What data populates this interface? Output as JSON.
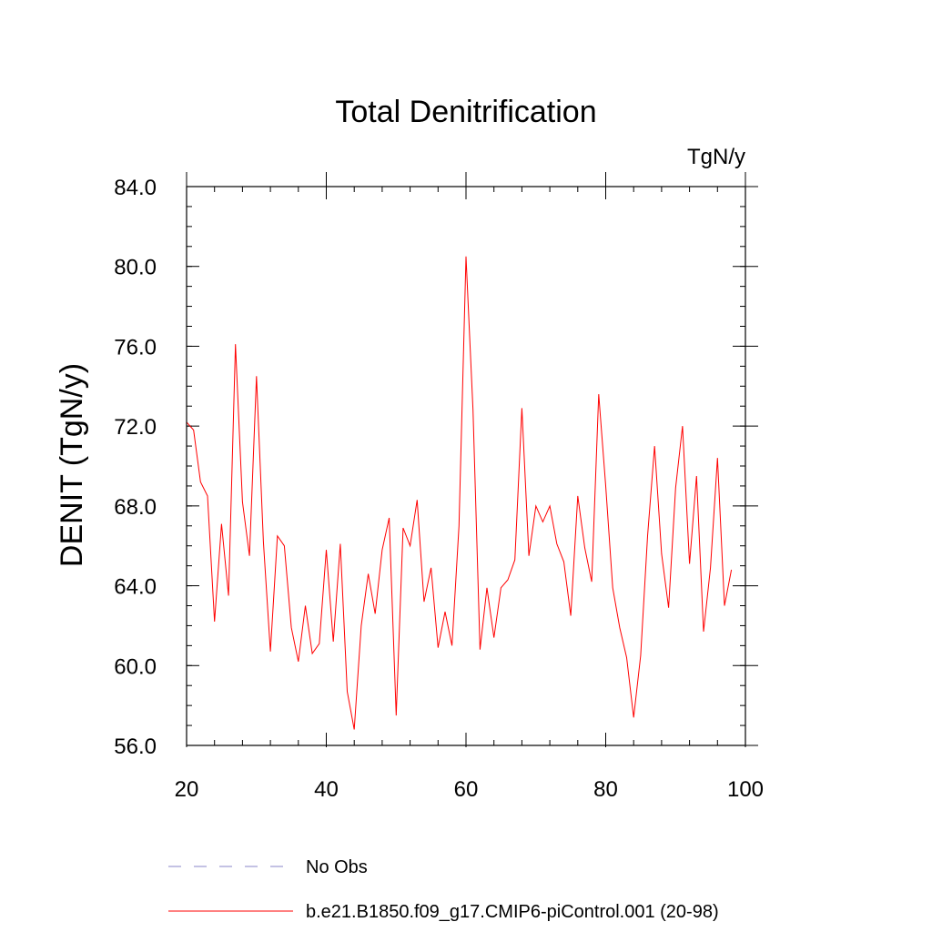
{
  "chart_data": {
    "type": "line",
    "title": "Total Denitrification",
    "units_label": "TgN/y",
    "ylabel": "DENIT  (TgN/y)",
    "xlabel": "",
    "xlim": [
      20,
      100
    ],
    "ylim": [
      56,
      84
    ],
    "x_ticks": [
      20,
      40,
      60,
      80,
      100
    ],
    "y_ticks": [
      56.0,
      60.0,
      64.0,
      68.0,
      72.0,
      76.0,
      80.0,
      84.0
    ],
    "x_ticks_labels": [
      "20",
      "40",
      "60",
      "80",
      "100"
    ],
    "y_ticks_labels": [
      "56.0",
      "60.0",
      "64.0",
      "68.0",
      "72.0",
      "76.0",
      "80.0",
      "84.0"
    ],
    "legend": [
      {
        "name": "No Obs",
        "color": "#8a84c8",
        "style": "dashed"
      },
      {
        "name": "b.e21.B1850.f09_g17.CMIP6-piControl.001 (20-98)",
        "color": "#ff0000",
        "style": "solid"
      }
    ],
    "series": [
      {
        "name": "b.e21.B1850.f09_g17.CMIP6-piControl.001 (20-98)",
        "color": "#ff0000",
        "x": [
          20,
          21,
          22,
          23,
          24,
          25,
          26,
          27,
          28,
          29,
          30,
          31,
          32,
          33,
          34,
          35,
          36,
          37,
          38,
          39,
          40,
          41,
          42,
          43,
          44,
          45,
          46,
          47,
          48,
          49,
          50,
          51,
          52,
          53,
          54,
          55,
          56,
          57,
          58,
          59,
          60,
          61,
          62,
          63,
          64,
          65,
          66,
          67,
          68,
          69,
          70,
          71,
          72,
          73,
          74,
          75,
          76,
          77,
          78,
          79,
          80,
          81,
          82,
          83,
          84,
          85,
          86,
          87,
          88,
          89,
          90,
          91,
          92,
          93,
          94,
          95,
          96,
          97,
          98
        ],
        "values": [
          72.2,
          71.8,
          69.2,
          68.5,
          62.2,
          67.1,
          63.5,
          76.1,
          68.2,
          65.5,
          74.5,
          66.2,
          60.7,
          66.5,
          66.0,
          61.9,
          60.2,
          63.0,
          60.6,
          61.1,
          65.8,
          61.2,
          66.1,
          58.7,
          56.8,
          62.0,
          64.6,
          62.6,
          65.8,
          67.4,
          57.5,
          66.9,
          66.0,
          68.3,
          63.2,
          64.9,
          60.9,
          62.7,
          61.0,
          67.0,
          80.5,
          72.8,
          60.8,
          63.9,
          61.4,
          63.9,
          64.3,
          65.3,
          72.9,
          65.5,
          68.0,
          67.2,
          68.0,
          66.1,
          65.2,
          62.5,
          68.5,
          65.9,
          64.2,
          73.6,
          69.0,
          63.9,
          61.9,
          60.4,
          57.4,
          60.5,
          66.5,
          71.0,
          65.6,
          62.9,
          68.9,
          72.0,
          65.1,
          69.5,
          61.7,
          64.9,
          70.4,
          63.0,
          64.8
        ]
      }
    ]
  }
}
